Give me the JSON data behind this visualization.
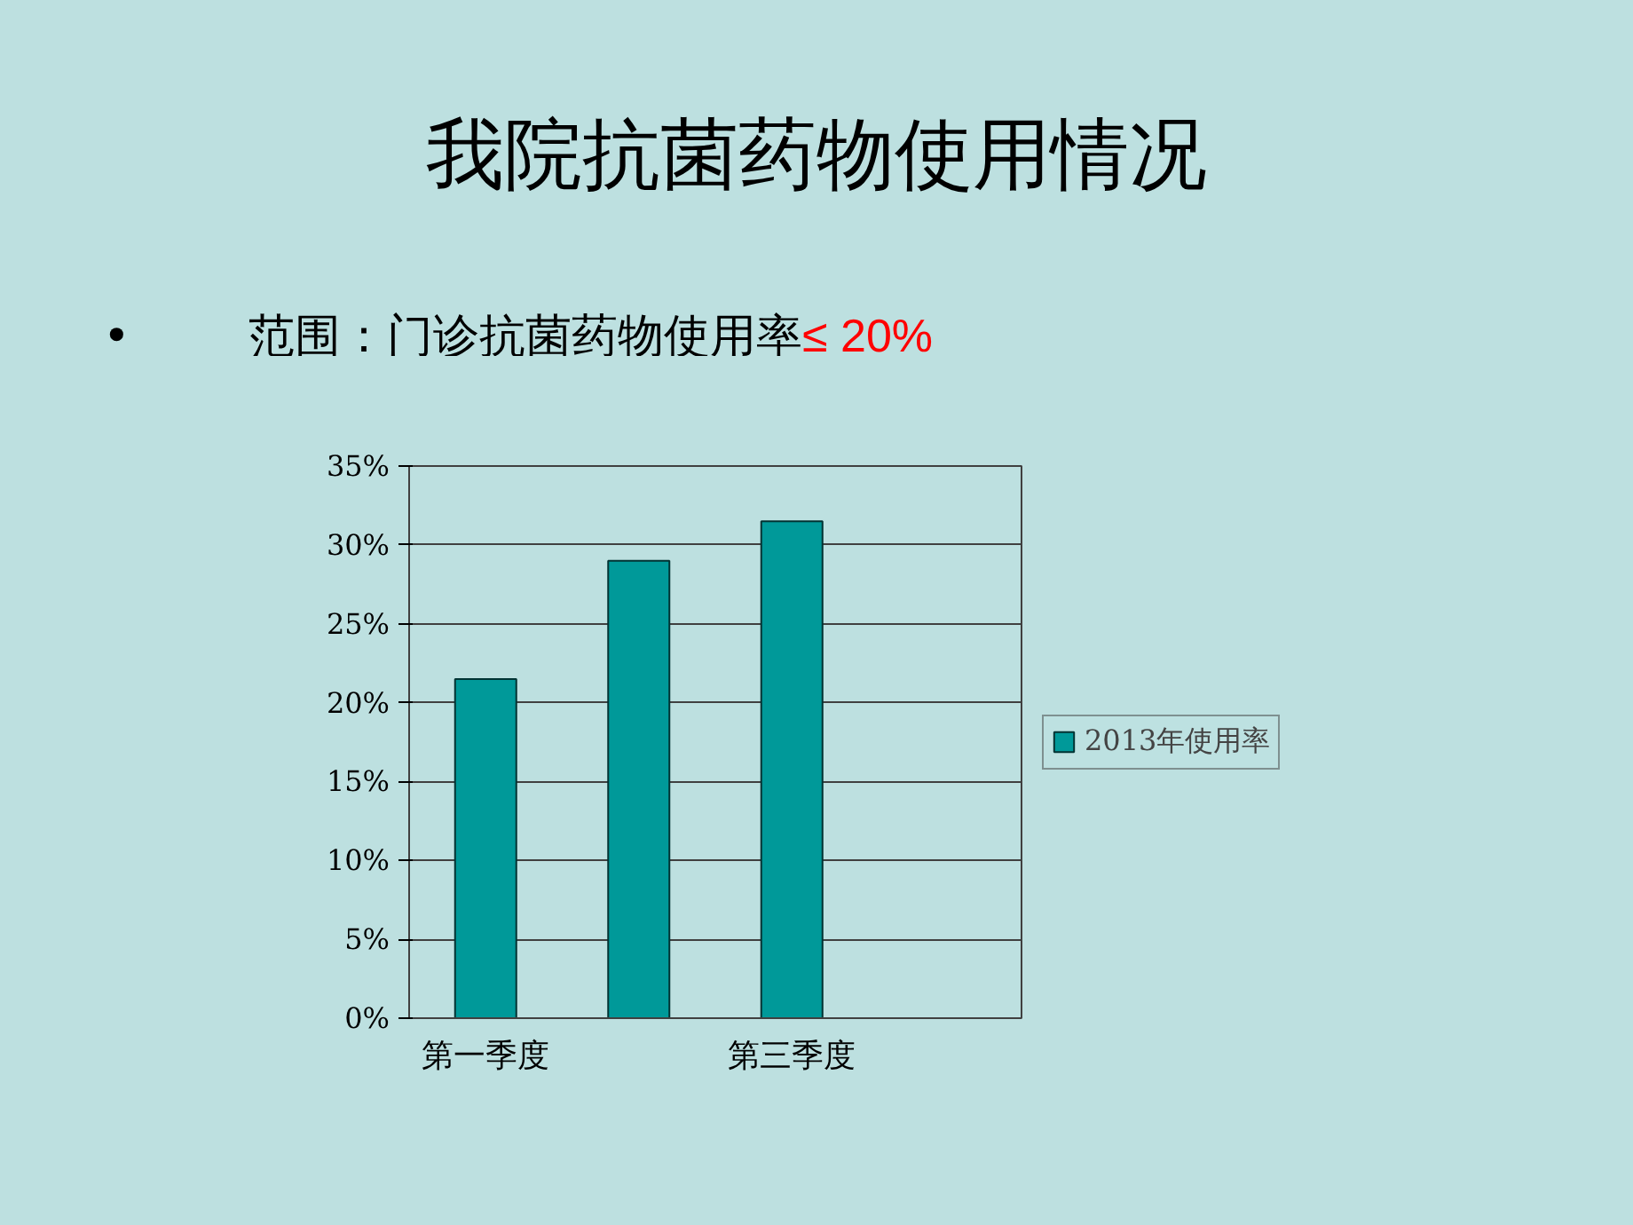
{
  "chart_data": {
    "type": "bar",
    "title": "我院抗菌药物使用情况",
    "subtitle": "范围：门诊抗菌药物使用率",
    "annotations": [
      "•",
      "≤ 20%"
    ],
    "categories": [
      "第一季度",
      null,
      "第三季度",
      null
    ],
    "series": [
      {
        "name": "2013年使用率",
        "color": "#009999",
        "values": [
          21.5,
          29,
          31.5,
          null
        ]
      }
    ],
    "ylim": [
      0,
      35
    ],
    "yticks": [
      {
        "value": 0,
        "label": "0%"
      },
      {
        "value": 5,
        "label": "5%"
      },
      {
        "value": 10,
        "label": "10%"
      },
      {
        "value": 15,
        "label": "15%"
      },
      {
        "value": 20,
        "label": "20%"
      },
      {
        "value": 25,
        "label": "25%"
      },
      {
        "value": 30,
        "label": "30%"
      },
      {
        "value": 35,
        "label": "35%"
      }
    ],
    "grid": "y",
    "legend": "right"
  }
}
